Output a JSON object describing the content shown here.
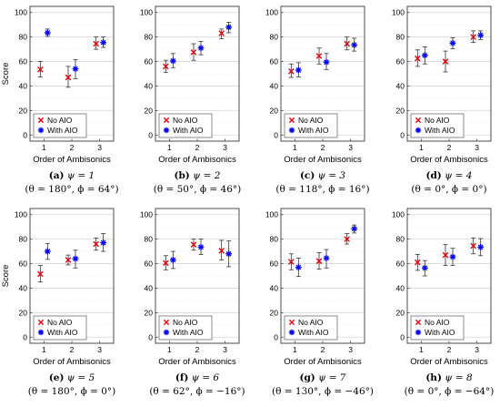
{
  "chart_data": [
    {
      "type": "errorbar-scatter",
      "id": "a",
      "caption_letter": "(a)",
      "caption_psi": "ψ = 1",
      "caption_params": "(θ = 180°, ϕ = 64°)",
      "xlabel": "Order of Ambisonics",
      "ylabel": "Score",
      "x": [
        1,
        2,
        3
      ],
      "ylim": [
        -5,
        105
      ],
      "yticks": [
        0,
        20,
        40,
        60,
        80,
        100
      ],
      "grid": true,
      "legend_position": "bottom-left",
      "series": [
        {
          "name": "No AIO",
          "marker": "x",
          "color": "#e8000b",
          "mean": [
            53.5,
            47,
            74.5
          ],
          "low": [
            47.5,
            39,
            70
          ],
          "high": [
            60,
            56,
            80
          ]
        },
        {
          "name": "With AIO",
          "marker": "*",
          "color": "#0000ff",
          "mean": [
            83.5,
            54,
            75.5
          ],
          "low": [
            80.5,
            46,
            71.5
          ],
          "high": [
            86.5,
            61.5,
            80
          ]
        }
      ]
    },
    {
      "type": "errorbar-scatter",
      "id": "b",
      "caption_letter": "(b)",
      "caption_psi": "ψ = 2",
      "caption_params": "(θ = 50°, ϕ = 46°)",
      "xlabel": "Order of Ambisonics",
      "ylabel": "",
      "x": [
        1,
        2,
        3
      ],
      "ylim": [
        -5,
        105
      ],
      "yticks": [
        0,
        20,
        40,
        60,
        80,
        100
      ],
      "grid": true,
      "legend_position": "bottom-left",
      "series": [
        {
          "name": "No AIO",
          "marker": "x",
          "color": "#e8000b",
          "mean": [
            56,
            67.5,
            83
          ],
          "low": [
            51,
            61,
            78.5
          ],
          "high": [
            61,
            74.5,
            86.5
          ]
        },
        {
          "name": "With AIO",
          "marker": "*",
          "color": "#0000ff",
          "mean": [
            60.5,
            71,
            88
          ],
          "low": [
            55,
            65.5,
            83.5
          ],
          "high": [
            66.5,
            76.5,
            92
          ]
        }
      ]
    },
    {
      "type": "errorbar-scatter",
      "id": "c",
      "caption_letter": "(c)",
      "caption_psi": "ψ = 3",
      "caption_params": "(θ = 118°, ϕ = 16°)",
      "xlabel": "Order of Ambisonics",
      "ylabel": "",
      "x": [
        1,
        2,
        3
      ],
      "ylim": [
        -5,
        105
      ],
      "yticks": [
        0,
        20,
        40,
        60,
        80,
        100
      ],
      "grid": true,
      "legend_position": "bottom-left",
      "series": [
        {
          "name": "No AIO",
          "marker": "x",
          "color": "#e8000b",
          "mean": [
            52,
            64.5,
            74.5
          ],
          "low": [
            47,
            58,
            69.5
          ],
          "high": [
            58,
            71,
            80
          ]
        },
        {
          "name": "With AIO",
          "marker": "*",
          "color": "#0000ff",
          "mean": [
            53,
            59.5,
            73.5
          ],
          "low": [
            47.5,
            53.5,
            68.5
          ],
          "high": [
            59,
            66.5,
            79
          ]
        }
      ]
    },
    {
      "type": "errorbar-scatter",
      "id": "d",
      "caption_letter": "(d)",
      "caption_psi": "ψ = 4",
      "caption_params": "(θ = 0°, ϕ = 0°)",
      "xlabel": "Order of Ambisonics",
      "ylabel": "",
      "x": [
        1,
        2,
        3
      ],
      "ylim": [
        -5,
        105
      ],
      "yticks": [
        0,
        20,
        40,
        60,
        80,
        100
      ],
      "grid": true,
      "legend_position": "bottom-left",
      "series": [
        {
          "name": "No AIO",
          "marker": "x",
          "color": "#e8000b",
          "mean": [
            62.5,
            60,
            80
          ],
          "low": [
            56,
            51.5,
            75.5
          ],
          "high": [
            69.5,
            68.5,
            85
          ]
        },
        {
          "name": "With AIO",
          "marker": "*",
          "color": "#0000ff",
          "mean": [
            65,
            75,
            81.5
          ],
          "low": [
            58,
            70.5,
            78
          ],
          "high": [
            72,
            79.5,
            85
          ]
        }
      ]
    },
    {
      "type": "errorbar-scatter",
      "id": "e",
      "caption_letter": "(e)",
      "caption_psi": "ψ = 5",
      "caption_params": "(θ = 180°, ϕ = 0°)",
      "xlabel": "Order of Ambisonics",
      "ylabel": "Score",
      "x": [
        1,
        2,
        3
      ],
      "ylim": [
        -5,
        105
      ],
      "yticks": [
        0,
        20,
        40,
        60,
        80,
        100
      ],
      "grid": true,
      "legend_position": "bottom-left",
      "series": [
        {
          "name": "No AIO",
          "marker": "x",
          "color": "#e8000b",
          "mean": [
            51.5,
            63,
            76
          ],
          "low": [
            45,
            59,
            71
          ],
          "high": [
            58.5,
            67,
            81
          ]
        },
        {
          "name": "With AIO",
          "marker": "*",
          "color": "#0000ff",
          "mean": [
            70,
            64,
            77
          ],
          "low": [
            63.5,
            56.5,
            70
          ],
          "high": [
            76.5,
            71,
            84.5
          ]
        }
      ]
    },
    {
      "type": "errorbar-scatter",
      "id": "f",
      "caption_letter": "(f)",
      "caption_psi": "ψ = 6",
      "caption_params": "(θ = 62°, ϕ = −16°)",
      "xlabel": "Order of Ambisonics",
      "ylabel": "",
      "x": [
        1,
        2,
        3
      ],
      "ylim": [
        -5,
        105
      ],
      "yticks": [
        0,
        20,
        40,
        60,
        80,
        100
      ],
      "grid": true,
      "legend_position": "bottom-left",
      "series": [
        {
          "name": "No AIO",
          "marker": "x",
          "color": "#e8000b",
          "mean": [
            60.5,
            75.5,
            70.5
          ],
          "low": [
            55,
            71,
            63
          ],
          "high": [
            66.5,
            80,
            79
          ]
        },
        {
          "name": "With AIO",
          "marker": "*",
          "color": "#0000ff",
          "mean": [
            63,
            73.5,
            68
          ],
          "low": [
            56,
            67.5,
            57.5
          ],
          "high": [
            70,
            80,
            78.5
          ]
        }
      ]
    },
    {
      "type": "errorbar-scatter",
      "id": "g",
      "caption_letter": "(g)",
      "caption_psi": "ψ = 7",
      "caption_params": "(θ = 130°, ϕ = −46°)",
      "xlabel": "Order of Ambisonics",
      "ylabel": "",
      "x": [
        1,
        2,
        3
      ],
      "ylim": [
        -5,
        105
      ],
      "yticks": [
        0,
        20,
        40,
        60,
        80,
        100
      ],
      "grid": true,
      "legend_position": "bottom-left",
      "series": [
        {
          "name": "No AIO",
          "marker": "x",
          "color": "#e8000b",
          "mean": [
            61.5,
            62,
            80
          ],
          "low": [
            55,
            55.5,
            76
          ],
          "high": [
            68,
            69,
            84.5
          ]
        },
        {
          "name": "With AIO",
          "marker": "*",
          "color": "#0000ff",
          "mean": [
            57,
            64.5,
            88.5
          ],
          "low": [
            49.5,
            56.5,
            85
          ],
          "high": [
            64.5,
            71.5,
            91.5
          ]
        }
      ]
    },
    {
      "type": "errorbar-scatter",
      "id": "h",
      "caption_letter": "(h)",
      "caption_psi": "ψ = 8",
      "caption_params": "(θ = 0°, ϕ = −64°)",
      "xlabel": "Order of Ambisonics",
      "ylabel": "",
      "x": [
        1,
        2,
        3
      ],
      "ylim": [
        -5,
        105
      ],
      "yticks": [
        0,
        20,
        40,
        60,
        80,
        100
      ],
      "grid": true,
      "legend_position": "bottom-left",
      "series": [
        {
          "name": "No AIO",
          "marker": "x",
          "color": "#e8000b",
          "mean": [
            61,
            67,
            74.5
          ],
          "low": [
            54.5,
            58.5,
            68
          ],
          "high": [
            67.5,
            75.5,
            81
          ]
        },
        {
          "name": "With AIO",
          "marker": "*",
          "color": "#0000ff",
          "mean": [
            56.5,
            65.5,
            73.5
          ],
          "low": [
            50,
            58.5,
            66.5
          ],
          "high": [
            62.5,
            72.5,
            80.5
          ]
        }
      ]
    }
  ]
}
